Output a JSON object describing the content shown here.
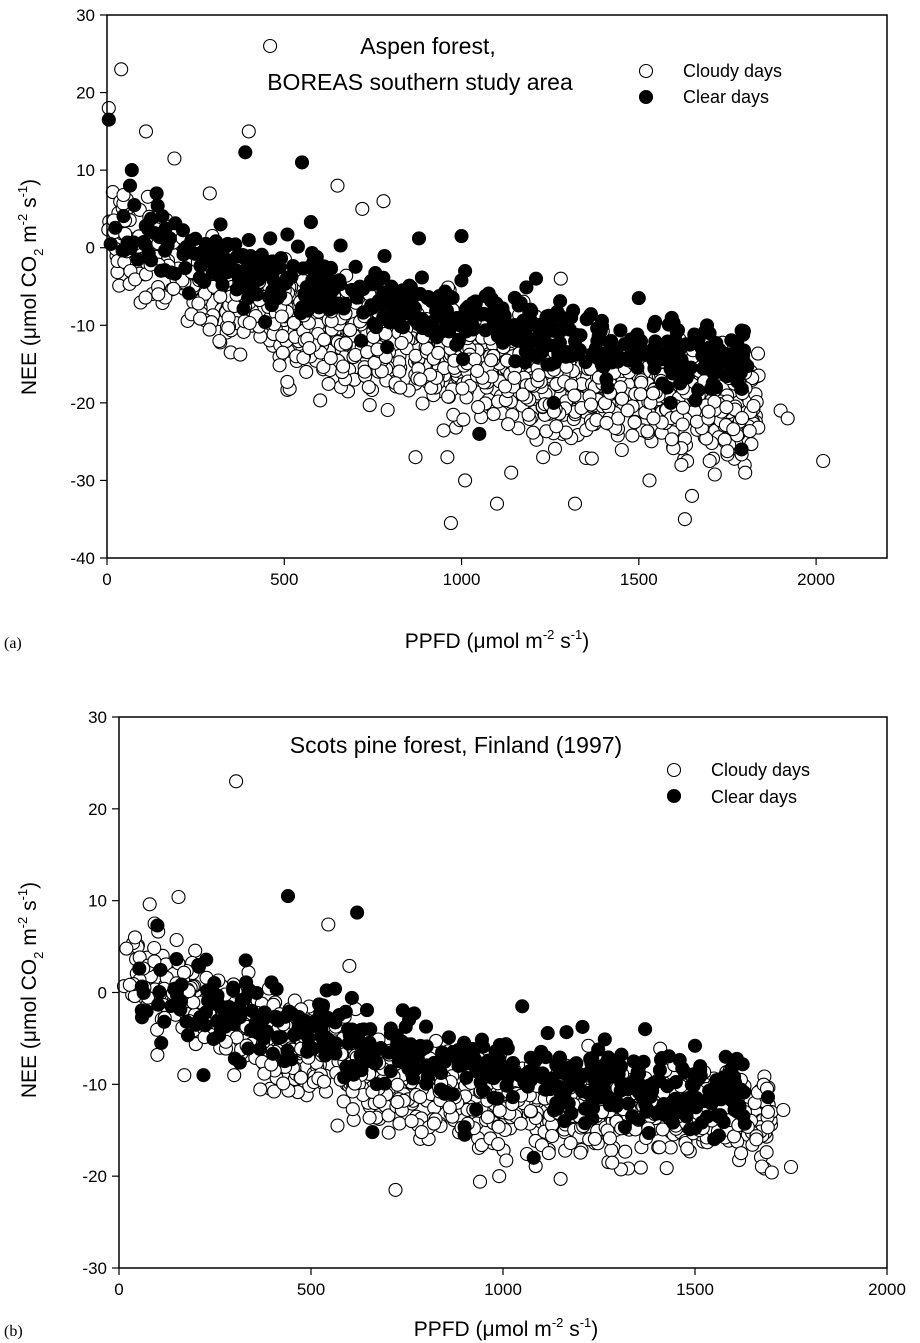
{
  "chart_data": [
    {
      "type": "scatter",
      "panel_label": "(a)",
      "title_lines": [
        "Aspen forest,",
        "BOREAS southern study area"
      ],
      "xlabel": {
        "main": "PPFD (μmol m",
        "sup1": "-2",
        "mid": " s",
        "sup2": "-1",
        "end": ")"
      },
      "ylabel": {
        "main": "NEE (μmol CO",
        "sub": "2",
        "mid1": " m",
        "sup1": "-2",
        "mid2": " s",
        "sup2": "-1",
        "end": ")"
      },
      "xlim": [
        0,
        2200
      ],
      "ylim": [
        -40,
        30
      ],
      "xticks": [
        0,
        500,
        1000,
        1500,
        2000
      ],
      "xtick_labels": [
        "0",
        "500",
        "1000",
        "1500",
        "2000"
      ],
      "yticks": [
        -40,
        -30,
        -20,
        -10,
        0,
        10,
        20,
        30
      ],
      "ytick_labels": [
        "-40",
        "-30",
        "-20",
        "-10",
        "0",
        "10",
        "20",
        "30"
      ],
      "legend": {
        "placement": "top-right",
        "entries": [
          "Cloudy days",
          "Clear days"
        ]
      },
      "series": [
        {
          "name": "Cloudy days",
          "style": "open",
          "outliers": [
            [
              460,
              26
            ],
            [
              40,
              23
            ],
            [
              5,
              18
            ],
            [
              110,
              15
            ],
            [
              400,
              15
            ],
            [
              190,
              11.5
            ],
            [
              290,
              7
            ],
            [
              650,
              8
            ],
            [
              780,
              6
            ],
            [
              720,
              5
            ],
            [
              1280,
              -4
            ],
            [
              1530,
              -30
            ],
            [
              1630,
              -35
            ],
            [
              970,
              -35.5
            ],
            [
              1100,
              -33
            ],
            [
              1320,
              -33
            ],
            [
              1650,
              -32
            ],
            [
              1010,
              -30
            ],
            [
              1620,
              -28
            ],
            [
              1700,
              -27.5
            ],
            [
              1800,
              -29
            ],
            [
              2020,
              -27.5
            ],
            [
              1900,
              -21
            ],
            [
              1920,
              -22
            ],
            [
              1140,
              -29
            ],
            [
              1230,
              -27
            ],
            [
              870,
              -27
            ],
            [
              960,
              -27
            ]
          ],
          "cloud": {
            "x_range": [
              0,
              1840
            ],
            "trend": [
              [
                0,
                5
              ],
              [
                50,
                1
              ],
              [
                100,
                -1
              ],
              [
                200,
                -3
              ],
              [
                300,
                -6
              ],
              [
                500,
                -9
              ],
              [
                700,
                -12
              ],
              [
                900,
                -14
              ],
              [
                1100,
                -16
              ],
              [
                1300,
                -18
              ],
              [
                1500,
                -19
              ],
              [
                1700,
                -20
              ],
              [
                1840,
                -21
              ]
            ],
            "spread": 5
          }
        },
        {
          "name": "Clear days",
          "style": "filled",
          "outliers": [
            [
              5,
              16.5
            ],
            [
              390,
              12.3
            ],
            [
              550,
              11
            ],
            [
              70,
              10
            ],
            [
              65,
              8
            ],
            [
              140,
              7
            ],
            [
              575,
              3.3
            ],
            [
              320,
              3
            ],
            [
              880,
              1.2
            ],
            [
              1000,
              1.5
            ],
            [
              400,
              1
            ],
            [
              1210,
              -4
            ],
            [
              1010,
              -3
            ],
            [
              1050,
              -24
            ],
            [
              1790,
              -26
            ],
            [
              1500,
              -6.5
            ],
            [
              1260,
              -20
            ],
            [
              1590,
              -20
            ]
          ],
          "cloud": {
            "x_range": [
              10,
              1810
            ],
            "trend": [
              [
                10,
                3
              ],
              [
                100,
                1
              ],
              [
                300,
                -2
              ],
              [
                500,
                -4
              ],
              [
                700,
                -6
              ],
              [
                900,
                -8
              ],
              [
                1100,
                -10
              ],
              [
                1300,
                -12
              ],
              [
                1500,
                -13
              ],
              [
                1700,
                -14
              ],
              [
                1810,
                -14.5
              ]
            ],
            "spread": 3
          }
        }
      ]
    },
    {
      "type": "scatter",
      "panel_label": "(b)",
      "title_lines": [
        "Scots pine forest, Finland (1997)"
      ],
      "xlabel": {
        "main": "PPFD (μmol m",
        "sup1": "-2",
        "mid": " s",
        "sup2": "-1",
        "end": ")"
      },
      "ylabel": {
        "main": "NEE (μmol CO",
        "sub": "2",
        "mid1": " m",
        "sup1": "-2",
        "mid2": " s",
        "sup2": "-1",
        "end": ")"
      },
      "xlim": [
        0,
        2000
      ],
      "ylim": [
        -30,
        30
      ],
      "xticks": [
        0,
        500,
        1000,
        1500,
        2000
      ],
      "xtick_labels": [
        "0",
        "500",
        "1000",
        "1500",
        "2000"
      ],
      "yticks": [
        -30,
        -20,
        -10,
        0,
        10,
        20,
        30
      ],
      "ytick_labels": [
        "-30",
        "-20",
        "-10",
        "0",
        "10",
        "20",
        "30"
      ],
      "legend": {
        "placement": "top-right",
        "entries": [
          "Cloudy days",
          "Clear days"
        ]
      },
      "series": [
        {
          "name": "Cloudy days",
          "style": "open",
          "outliers": [
            [
              305,
              23
            ],
            [
              155,
              10.4
            ],
            [
              80,
              9.6
            ],
            [
              545,
              7.4
            ],
            [
              600,
              2.9
            ],
            [
              170,
              -9
            ],
            [
              100,
              -6.8
            ],
            [
              300,
              -9
            ],
            [
              720,
              -21.5
            ],
            [
              940,
              -20.6
            ],
            [
              990,
              -20
            ],
            [
              1150,
              -20.3
            ],
            [
              1700,
              -19.6
            ],
            [
              1750,
              -19
            ],
            [
              1620,
              -17.5
            ],
            [
              1660,
              -16
            ],
            [
              1690,
              -13
            ],
            [
              1730,
              -12.8
            ],
            [
              1590,
              -8.5
            ],
            [
              1480,
              -17
            ]
          ],
          "cloud": {
            "x_range": [
              10,
              1700
            ],
            "trend": [
              [
                10,
                4
              ],
              [
                100,
                1
              ],
              [
                200,
                -1
              ],
              [
                350,
                -4
              ],
              [
                500,
                -7
              ],
              [
                700,
                -10
              ],
              [
                900,
                -12
              ],
              [
                1100,
                -12.5
              ],
              [
                1300,
                -13
              ],
              [
                1500,
                -13
              ],
              [
                1700,
                -13
              ]
            ],
            "spread": 3.5
          }
        },
        {
          "name": "Clear days",
          "style": "filled",
          "outliers": [
            [
              440,
              10.5
            ],
            [
              620,
              8.7
            ],
            [
              100,
              7.3
            ],
            [
              330,
              3.5
            ],
            [
              60,
              -2.7
            ],
            [
              110,
              -5.5
            ],
            [
              220,
              -9
            ],
            [
              660,
              -15.2
            ],
            [
              900,
              -15.5
            ],
            [
              1080,
              -18
            ],
            [
              1160,
              -14
            ],
            [
              1380,
              -15.3
            ],
            [
              1690,
              -11.4
            ],
            [
              1500,
              -5.8
            ],
            [
              1580,
              -7
            ],
            [
              1050,
              -1.5
            ],
            [
              1370,
              -4
            ]
          ],
          "cloud": {
            "x_range": [
              40,
              1640
            ],
            "trend": [
              [
                40,
                2
              ],
              [
                150,
                0
              ],
              [
                300,
                -2
              ],
              [
                500,
                -4
              ],
              [
                700,
                -6
              ],
              [
                900,
                -8
              ],
              [
                1100,
                -9
              ],
              [
                1300,
                -10
              ],
              [
                1500,
                -11
              ],
              [
                1640,
                -11.5
              ]
            ],
            "spread": 3
          }
        }
      ]
    }
  ]
}
